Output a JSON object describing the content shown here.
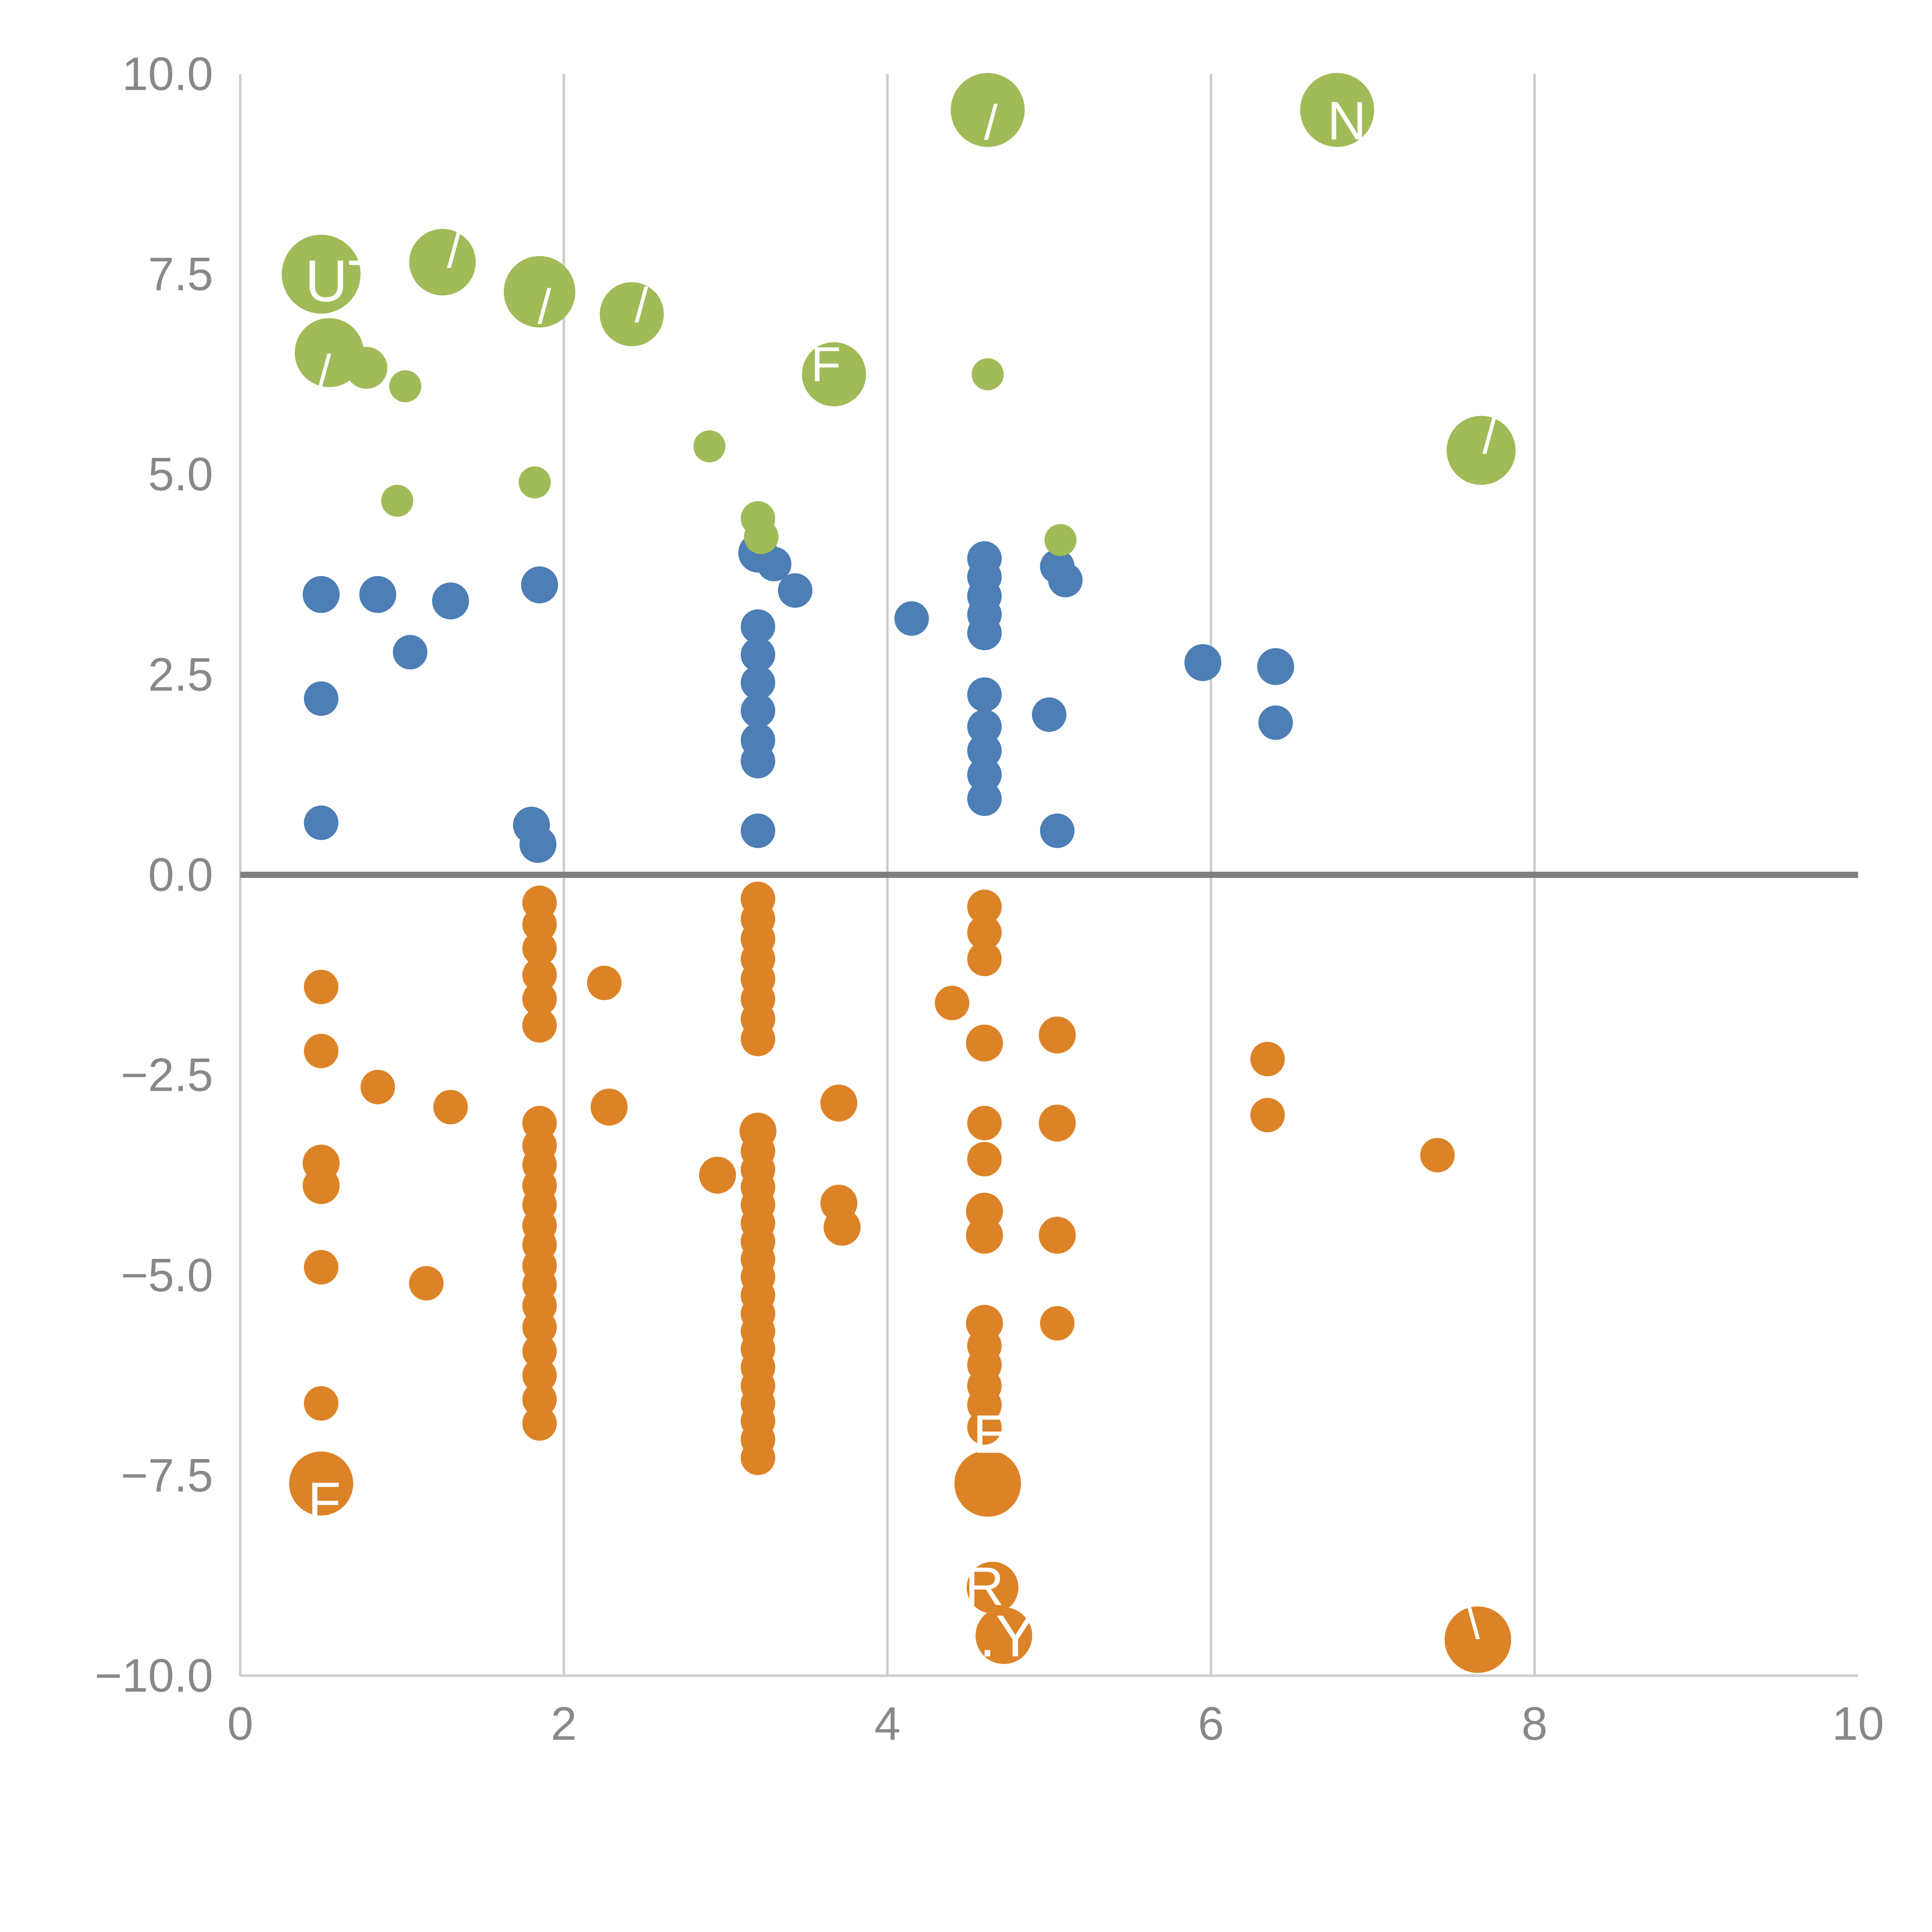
{
  "chart_data": {
    "type": "scatter",
    "title": "",
    "xlabel": "",
    "ylabel": "",
    "xlim": [
      0,
      10
    ],
    "ylim": [
      -10,
      10
    ],
    "grid": true,
    "legend": "none",
    "x_gridlines": [
      2,
      4,
      6,
      8
    ],
    "x_ticks": [
      0,
      2,
      4,
      6,
      8,
      10
    ],
    "x_tick_labels": [
      "0",
      "2",
      "4",
      "6",
      "8",
      "10"
    ],
    "y_ticks": [
      -10,
      -7.5,
      -5,
      -2.5,
      0,
      2.5,
      5,
      7.5,
      10
    ],
    "y_tick_labels": [
      "−10.0",
      "−7.5",
      "−5.0",
      "−2.5",
      "0.0",
      "2.5",
      "5.0",
      "7.5",
      "10.0"
    ],
    "colors": {
      "green": "#a0bb57",
      "blue": "#4d7eb5",
      "orange": "#dd8327",
      "grid": "#cccccc",
      "axis": "#cccccc",
      "zero_line": "#7f7f7f",
      "tick_label": "#888888",
      "annotation": "#ffffff"
    },
    "series": [
      {
        "name": "orange",
        "color": "#dd8327",
        "points": [
          [
            0.5,
            -1.4,
            14
          ],
          [
            0.5,
            -2.2,
            14
          ],
          [
            0.5,
            -3.6,
            15
          ],
          [
            0.5,
            -3.88,
            15
          ],
          [
            0.5,
            -4.9,
            14
          ],
          [
            0.5,
            -6.6,
            14
          ],
          [
            0.5,
            -7.6,
            26
          ],
          [
            0.85,
            -2.65,
            14
          ],
          [
            1.15,
            -5.1,
            14
          ],
          [
            1.3,
            -2.9,
            14
          ],
          [
            1.85,
            -0.35,
            14
          ],
          [
            1.85,
            -0.62,
            14
          ],
          [
            1.85,
            -0.92,
            14
          ],
          [
            1.85,
            -1.25,
            14
          ],
          [
            1.85,
            -1.55,
            14
          ],
          [
            1.85,
            -1.88,
            14
          ],
          [
            1.85,
            -3.1,
            14
          ],
          [
            1.85,
            -3.38,
            14
          ],
          [
            1.85,
            -3.62,
            14
          ],
          [
            1.85,
            -3.88,
            14
          ],
          [
            1.85,
            -4.12,
            14
          ],
          [
            1.85,
            -4.38,
            14
          ],
          [
            1.85,
            -4.62,
            14
          ],
          [
            1.85,
            -4.88,
            14
          ],
          [
            1.85,
            -5.12,
            14
          ],
          [
            1.85,
            -5.38,
            14
          ],
          [
            1.85,
            -5.65,
            14
          ],
          [
            1.85,
            -5.95,
            14
          ],
          [
            1.85,
            -6.25,
            14
          ],
          [
            1.85,
            -6.55,
            14
          ],
          [
            1.85,
            -6.85,
            14
          ],
          [
            2.25,
            -1.35,
            14
          ],
          [
            2.28,
            -2.9,
            15
          ],
          [
            2.95,
            -3.75,
            15
          ],
          [
            3.2,
            -0.3,
            14
          ],
          [
            3.2,
            -0.55,
            14
          ],
          [
            3.2,
            -0.8,
            14
          ],
          [
            3.2,
            -1.05,
            14
          ],
          [
            3.2,
            -1.3,
            14
          ],
          [
            3.2,
            -1.55,
            14
          ],
          [
            3.2,
            -1.8,
            14
          ],
          [
            3.2,
            -2.05,
            14
          ],
          [
            3.2,
            -3.2,
            15
          ],
          [
            3.2,
            -3.45,
            14
          ],
          [
            3.2,
            -3.68,
            14
          ],
          [
            3.2,
            -3.9,
            14
          ],
          [
            3.2,
            -4.12,
            14
          ],
          [
            3.2,
            -4.35,
            14
          ],
          [
            3.2,
            -4.58,
            14
          ],
          [
            3.2,
            -4.8,
            14
          ],
          [
            3.2,
            -5.02,
            14
          ],
          [
            3.2,
            -5.25,
            14
          ],
          [
            3.2,
            -5.48,
            14
          ],
          [
            3.2,
            -5.7,
            14
          ],
          [
            3.2,
            -5.92,
            14
          ],
          [
            3.2,
            -6.15,
            14
          ],
          [
            3.2,
            -6.38,
            14
          ],
          [
            3.2,
            -6.6,
            14
          ],
          [
            3.2,
            -6.82,
            14
          ],
          [
            3.2,
            -7.05,
            14
          ],
          [
            3.2,
            -7.28,
            14
          ],
          [
            3.7,
            -2.85,
            15
          ],
          [
            3.7,
            -4.1,
            15
          ],
          [
            3.72,
            -4.4,
            15
          ],
          [
            4.4,
            -1.6,
            14
          ],
          [
            4.6,
            -0.4,
            14
          ],
          [
            4.6,
            -0.72,
            14
          ],
          [
            4.6,
            -1.05,
            14
          ],
          [
            4.6,
            -2.1,
            15
          ],
          [
            4.6,
            -3.1,
            14
          ],
          [
            4.6,
            -3.55,
            14
          ],
          [
            4.6,
            -4.2,
            15
          ],
          [
            4.6,
            -4.5,
            15
          ],
          [
            4.6,
            -5.6,
            15
          ],
          [
            4.6,
            -5.88,
            14
          ],
          [
            4.6,
            -6.12,
            14
          ],
          [
            4.6,
            -6.38,
            14
          ],
          [
            4.6,
            -6.62,
            14
          ],
          [
            4.6,
            -6.9,
            14
          ],
          [
            4.62,
            -7.6,
            27
          ],
          [
            4.65,
            -8.9,
            21
          ],
          [
            4.72,
            -9.5,
            23
          ],
          [
            5.05,
            -2.0,
            15
          ],
          [
            5.05,
            -3.1,
            15
          ],
          [
            5.05,
            -4.5,
            15
          ],
          [
            5.05,
            -5.6,
            14
          ],
          [
            6.35,
            -2.3,
            14
          ],
          [
            6.35,
            -3.0,
            14
          ],
          [
            7.4,
            -3.5,
            14
          ],
          [
            7.65,
            -9.55,
            27
          ]
        ]
      },
      {
        "name": "blue",
        "color": "#4d7eb5",
        "points": [
          [
            0.5,
            3.5,
            15
          ],
          [
            0.85,
            3.5,
            15
          ],
          [
            1.05,
            2.78,
            14
          ],
          [
            1.3,
            3.42,
            15
          ],
          [
            1.85,
            3.62,
            15
          ],
          [
            0.5,
            2.2,
            14
          ],
          [
            0.5,
            0.65,
            14
          ],
          [
            1.8,
            0.62,
            15
          ],
          [
            1.84,
            0.38,
            15
          ],
          [
            3.2,
            4.02,
            16
          ],
          [
            3.3,
            3.88,
            14
          ],
          [
            3.43,
            3.55,
            14
          ],
          [
            3.2,
            3.1,
            14
          ],
          [
            3.2,
            2.75,
            14
          ],
          [
            3.2,
            2.4,
            14
          ],
          [
            3.2,
            2.05,
            14
          ],
          [
            3.2,
            1.68,
            14
          ],
          [
            3.2,
            1.42,
            14
          ],
          [
            3.2,
            0.55,
            14
          ],
          [
            4.15,
            3.2,
            14
          ],
          [
            4.6,
            3.95,
            14
          ],
          [
            4.6,
            3.72,
            14
          ],
          [
            4.6,
            3.48,
            14
          ],
          [
            4.6,
            3.25,
            14
          ],
          [
            4.6,
            3.02,
            14
          ],
          [
            4.6,
            2.25,
            14
          ],
          [
            4.6,
            1.85,
            14
          ],
          [
            4.6,
            1.55,
            14
          ],
          [
            4.6,
            1.25,
            14
          ],
          [
            4.6,
            0.95,
            14
          ],
          [
            5.05,
            3.85,
            14
          ],
          [
            5.1,
            3.68,
            14
          ],
          [
            5.0,
            2.0,
            14
          ],
          [
            5.05,
            0.55,
            14
          ],
          [
            5.95,
            2.65,
            15
          ],
          [
            6.4,
            2.6,
            15
          ],
          [
            6.4,
            1.9,
            14
          ]
        ]
      },
      {
        "name": "green",
        "color": "#a0bb57",
        "points": [
          [
            0.5,
            7.5,
            32
          ],
          [
            0.55,
            6.52,
            28
          ],
          [
            0.78,
            6.33,
            17
          ],
          [
            1.02,
            6.1,
            13
          ],
          [
            1.25,
            7.65,
            27
          ],
          [
            0.97,
            4.67,
            13
          ],
          [
            1.85,
            7.28,
            29
          ],
          [
            1.82,
            4.9,
            13
          ],
          [
            2.42,
            7.0,
            26
          ],
          [
            2.9,
            5.35,
            13
          ],
          [
            3.2,
            4.45,
            14
          ],
          [
            3.22,
            4.22,
            14
          ],
          [
            3.67,
            6.25,
            26
          ],
          [
            4.62,
            6.25,
            13
          ],
          [
            4.62,
            9.55,
            30
          ],
          [
            6.78,
            9.55,
            30
          ],
          [
            7.67,
            5.3,
            28
          ],
          [
            5.07,
            4.18,
            13
          ]
        ]
      }
    ],
    "annotations": [
      {
        "x": 0.4,
        "y": 7.42,
        "text": "UT",
        "size": 48,
        "anchor": "start"
      },
      {
        "x": 1.32,
        "y": 7.8,
        "text": "/",
        "size": 40
      },
      {
        "x": 1.88,
        "y": 7.1,
        "text": "/",
        "size": 40
      },
      {
        "x": 2.48,
        "y": 7.12,
        "text": "/",
        "size": 40
      },
      {
        "x": 0.52,
        "y": 6.28,
        "text": "/",
        "size": 40
      },
      {
        "x": 3.62,
        "y": 6.38,
        "text": "F",
        "size": 40
      },
      {
        "x": 4.64,
        "y": 9.4,
        "text": "/",
        "size": 40
      },
      {
        "x": 6.84,
        "y": 9.42,
        "text": "N",
        "size": 44
      },
      {
        "x": 7.72,
        "y": 5.48,
        "text": "/",
        "size": 40
      },
      {
        "x": 0.52,
        "y": -7.82,
        "text": "F",
        "size": 44
      },
      {
        "x": 4.64,
        "y": -6.98,
        "text": "E",
        "size": 44
      },
      {
        "x": 4.6,
        "y": -8.88,
        "text": "R",
        "size": 44
      },
      {
        "x": 4.74,
        "y": -9.5,
        "text": ".Y",
        "size": 48
      },
      {
        "x": 7.62,
        "y": -9.32,
        "text": "\\",
        "size": 40
      }
    ]
  }
}
